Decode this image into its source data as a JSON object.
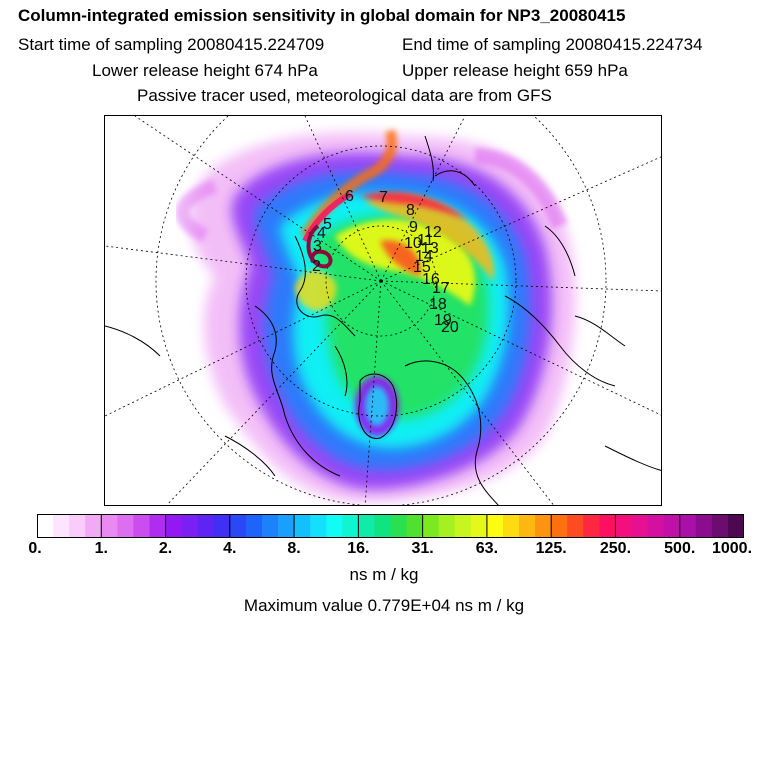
{
  "header": {
    "title": "Column-integrated emission sensitivity in global domain for NP3_20080415",
    "start_time": "Start time of sampling 20080415.224709",
    "end_time": "End time of sampling 20080415.224734",
    "lower_release": "Lower release height  674 hPa",
    "upper_release": "Upper release height  659 hPa",
    "tracer_info": "Passive tracer used, meteorological data are from GFS"
  },
  "colorbar": {
    "tick_labels": [
      "0.",
      "1.",
      "2.",
      "4.",
      "8.",
      "16.",
      "31.",
      "63.",
      "125.",
      "250.",
      "500.",
      "1000."
    ],
    "units": "ns m / kg",
    "colors": [
      "#ffffff",
      "#fde6fd",
      "#f9ccfa",
      "#f3aaf6",
      "#e98af2",
      "#dd6ef0",
      "#cc4cf0",
      "#b02cf0",
      "#9418f2",
      "#7a20f4",
      "#5e24f4",
      "#4030f6",
      "#2a48f8",
      "#1e64fa",
      "#1c82fc",
      "#18a0fc",
      "#14c0fc",
      "#12e0fc",
      "#10fcf4",
      "#10f4d0",
      "#10eca8",
      "#10e480",
      "#28e050",
      "#50e030",
      "#7ce820",
      "#a4f020",
      "#c8f420",
      "#e4f81c",
      "#fcfc10",
      "#fcdc10",
      "#fcb810",
      "#fc9410",
      "#fc7010",
      "#fc4c20",
      "#fc2840",
      "#fc1060",
      "#f4107c",
      "#e61090",
      "#d410a0",
      "#c010a8",
      "#a810a8",
      "#8c0c90",
      "#6c0c70",
      "#4c0850"
    ]
  },
  "maximum_value": "Maximum value  0.779E+04 ns m / kg",
  "trajectory_labels": [
    "2",
    "3",
    "4",
    "5",
    "6",
    "7",
    "8",
    "9",
    "10",
    "11",
    "12",
    "13",
    "14",
    "15",
    "16",
    "17",
    "18",
    "19",
    "20"
  ]
}
